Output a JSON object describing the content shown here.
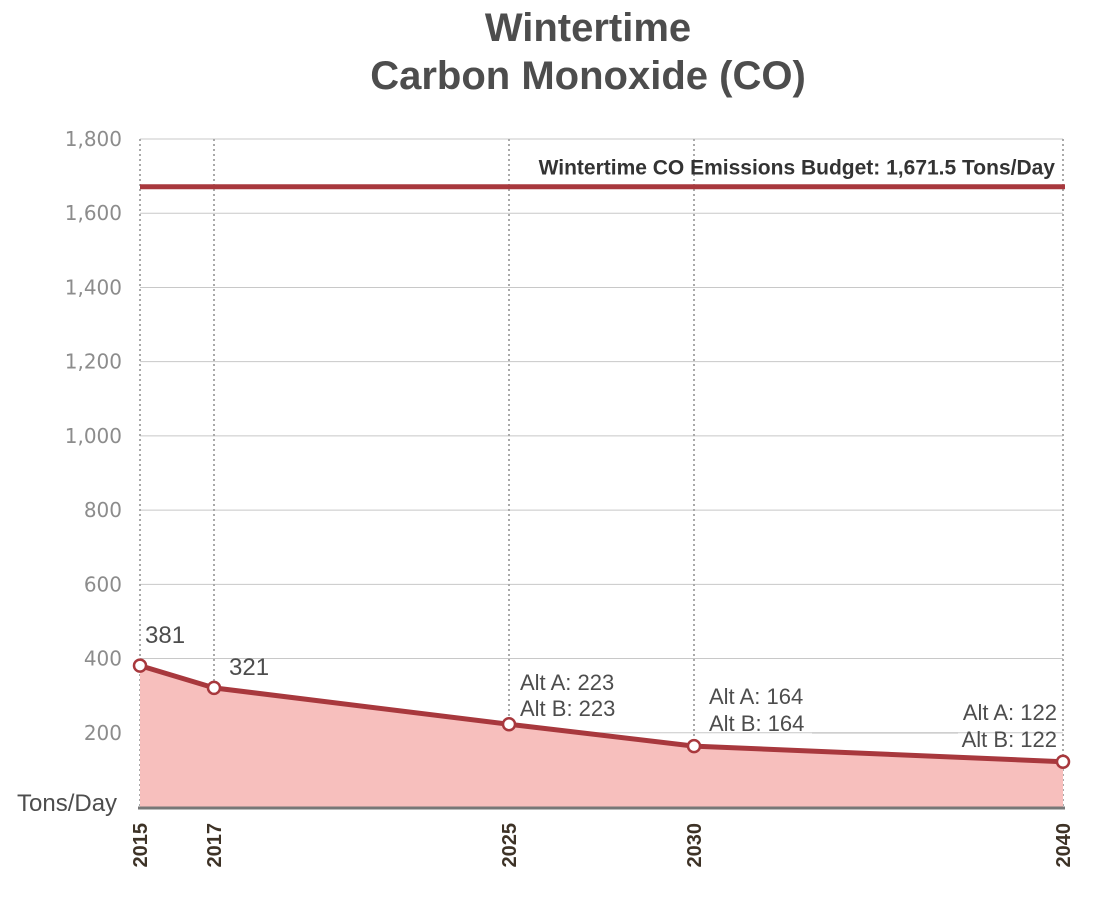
{
  "chart_data": {
    "type": "area",
    "title_line1": "Wintertime",
    "title_line2": "Carbon Monoxide (CO)",
    "ylabel": "Tons/Day",
    "ylim": [
      0,
      1800
    ],
    "y_ticks": [
      {
        "value": 200,
        "label": "200"
      },
      {
        "value": 400,
        "label": "400"
      },
      {
        "value": 600,
        "label": "600"
      },
      {
        "value": 800,
        "label": "800"
      },
      {
        "value": 1000,
        "label": "1,000"
      },
      {
        "value": 1200,
        "label": "1,200"
      },
      {
        "value": 1400,
        "label": "1,400"
      },
      {
        "value": 1600,
        "label": "1,600"
      },
      {
        "value": 1800,
        "label": "1,800"
      }
    ],
    "x": [
      2015,
      2017,
      2025,
      2030,
      2040
    ],
    "x_labels": [
      "2015",
      "2017",
      "2025",
      "2030",
      "2040"
    ],
    "series": [
      {
        "values": [
          381,
          321,
          223,
          164,
          122
        ]
      }
    ],
    "data_labels": [
      [
        "381"
      ],
      [
        "321"
      ],
      [
        "Alt A: 223",
        "Alt B: 223"
      ],
      [
        "Alt A: 164",
        "Alt B: 164"
      ],
      [
        "Alt A: 122",
        "Alt B: 122"
      ]
    ],
    "budget": {
      "value": 1671.5,
      "label": "Wintertime CO Emissions Budget: 1,671.5 Tons/Day"
    },
    "grid": true,
    "colors": {
      "line": "#a8383d",
      "fill": "#f7bfbd",
      "grid": "#c8c8c8",
      "axis": "#777777"
    }
  }
}
